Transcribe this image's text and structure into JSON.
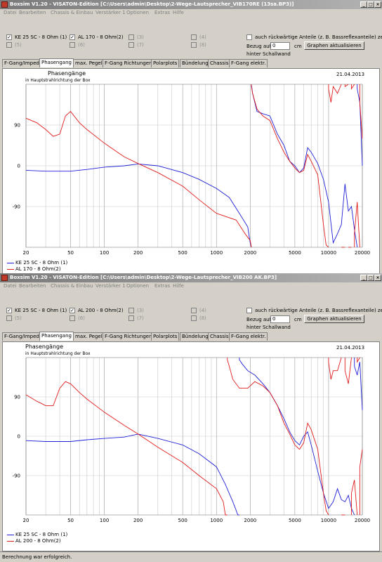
{
  "windows": [
    {
      "title": "Boxsim V1.20 - VISATON-Edition [C:\\Users\\admin\\Desktop\\2-Wege-Lautsprecher_VIB170RE (13sa.BP3)]",
      "menu": [
        "Datei",
        "Bearbeiten",
        "Chassis & Einbau",
        "Verstärker 1",
        "Optionen",
        "Extras",
        "Hilfe"
      ],
      "checks": [
        {
          "label": "KE 25 SC - 8 Ohm  (1)",
          "checked": true,
          "enabled": true
        },
        {
          "label": "AL 170 - 8 Ohm(2)",
          "checked": true,
          "enabled": true
        },
        {
          "label": "(3)",
          "checked": false,
          "enabled": false
        },
        {
          "label": "(4)",
          "checked": false,
          "enabled": false
        },
        {
          "label": "(5)",
          "checked": false,
          "enabled": false
        },
        {
          "label": "(6)",
          "checked": false,
          "enabled": false
        },
        {
          "label": "(7)",
          "checked": false,
          "enabled": false
        },
        {
          "label": "(8)",
          "checked": false,
          "enabled": false
        }
      ],
      "rueck_label": "auch rückwärtige Anteile (z. B. Bassreflexanteile) zeigen",
      "bezug_label": "Bezug auf",
      "bezug_value": "0",
      "unit_cm": "cm",
      "hinter_label": "hinter Schallwand",
      "update_button": "Graphen aktualisieren",
      "tabs": [
        "F-Gang/Imped.",
        "Phasengang",
        "max. Pegel",
        "F-Gang Richtungen",
        "Polarplots",
        "Bündelung",
        "Chassis",
        "F-Gang elektr."
      ],
      "active_tab": 1,
      "plot_title": "Phasengänge",
      "plot_subtitle": "in Hauptstrahlrichtung der Box",
      "plot_date": "21.04.2013",
      "legend": [
        {
          "label": "KE 25 SC - 8 Ohm  (1)",
          "color": "#1f1fd6"
        },
        {
          "label": "AL 170 - 8 Ohm(2)",
          "color": "#e01b1b"
        }
      ]
    },
    {
      "title": "Boxsim V1.20 - VISATON-Edition [C:\\Users\\admin\\Desktop\\2-Wege-Lautsprecher_VIB200 AK.BP3]",
      "menu": [
        "Datei",
        "Bearbeiten",
        "Chassis & Einbau",
        "Verstärker 1",
        "Optionen",
        "Extras",
        "Hilfe"
      ],
      "checks": [
        {
          "label": "KE 25 SC - 8 Ohm  (1)",
          "checked": true,
          "enabled": true
        },
        {
          "label": "AL 200 - 8 Ohm(2)",
          "checked": true,
          "enabled": true
        },
        {
          "label": "(3)",
          "checked": false,
          "enabled": false
        },
        {
          "label": "(4)",
          "checked": false,
          "enabled": false
        },
        {
          "label": "(5)",
          "checked": false,
          "enabled": false
        },
        {
          "label": "(6)",
          "checked": false,
          "enabled": false
        },
        {
          "label": "(7)",
          "checked": false,
          "enabled": false
        },
        {
          "label": "(8)",
          "checked": false,
          "enabled": false
        }
      ],
      "rueck_label": "auch rückwärtige Anteile (z. B. Bassreflexanteile) zeigen",
      "bezug_label": "Bezug auf",
      "bezug_value": "0",
      "unit_cm": "cm",
      "hinter_label": "hinter Schallwand",
      "update_button": "Graphen aktualisieren",
      "tabs": [
        "F-Gang/Imped.",
        "Phasengang",
        "max. Pegel",
        "F-Gang Richtungen",
        "Polarplots",
        "Bündelung",
        "Chassis",
        "F-Gang elektr."
      ],
      "active_tab": 1,
      "plot_title": "Phasengänge",
      "plot_subtitle": "in Hauptstrahlrichtung der Box",
      "plot_date": "21.04.2013",
      "legend": [
        {
          "label": "KE 25 SC - 8 Ohm  (1)",
          "color": "#1f1fd6"
        },
        {
          "label": "AL 200 - 8 Ohm(2)",
          "color": "#e01b1b"
        }
      ]
    }
  ],
  "status_text": "Berechnung war erfolgreich.",
  "chart_data": [
    {
      "type": "line",
      "xscale": "log",
      "xlim": [
        20,
        20000
      ],
      "ylim": [
        -180,
        180
      ],
      "xticks": [
        20,
        50,
        100,
        200,
        500,
        1000,
        2000,
        5000,
        10000,
        20000
      ],
      "xtick_labels": [
        "20",
        "50",
        "100",
        "200",
        "500",
        "1000",
        "2000",
        "5000",
        "10000",
        "20000"
      ],
      "yticks": [
        90,
        0,
        -90
      ],
      "ytick_labels": [
        "90",
        "0",
        "-90"
      ],
      "grid": true,
      "series": [
        {
          "name": "KE 25 SC - 8 Ohm  (1)",
          "color": "#1f1fd6",
          "x": [
            20,
            30,
            50,
            70,
            100,
            150,
            200,
            300,
            500,
            700,
            1000,
            1300,
            1600,
            1900,
            2000,
            2050,
            2100,
            2300,
            2600,
            3000,
            3500,
            4000,
            4500,
            5000,
            5500,
            6000,
            6500,
            7000,
            8000,
            9000,
            10000,
            11000,
            12000,
            13000,
            14000,
            15000,
            16000,
            17000,
            18000,
            19000,
            20000
          ],
          "y": [
            -10,
            -12,
            -12,
            -8,
            -3,
            0,
            4,
            0,
            -15,
            -30,
            -50,
            -70,
            -105,
            -135,
            -170,
            180,
            160,
            120,
            115,
            110,
            70,
            45,
            10,
            0,
            -15,
            -5,
            40,
            30,
            5,
            -30,
            -80,
            -170,
            -150,
            -130,
            -40,
            -100,
            -90,
            -140,
            170,
            140,
            0
          ]
        },
        {
          "name": "AL 170 - 8 Ohm(2)",
          "color": "#e01b1b",
          "x": [
            20,
            25,
            30,
            35,
            40,
            45,
            50,
            60,
            70,
            100,
            150,
            200,
            300,
            500,
            700,
            1000,
            1500,
            1800,
            2000,
            2050,
            2100,
            2300,
            2600,
            3000,
            3500,
            4000,
            4500,
            5000,
            5500,
            6000,
            6500,
            7000,
            8000,
            9000,
            9500,
            10000,
            10500,
            11000,
            12000,
            13000,
            14000,
            15000,
            16000,
            17000,
            18000,
            19000,
            20000
          ],
          "y": [
            105,
            95,
            80,
            65,
            70,
            110,
            120,
            95,
            80,
            50,
            20,
            5,
            -15,
            -45,
            -75,
            -105,
            -120,
            -150,
            -165,
            175,
            160,
            125,
            110,
            100,
            60,
            30,
            10,
            -5,
            -15,
            -10,
            25,
            10,
            -20,
            -130,
            -175,
            170,
            140,
            175,
            160,
            -180,
            175,
            -180,
            170,
            -150,
            -80,
            140,
            60
          ]
        }
      ]
    },
    {
      "type": "line",
      "xscale": "log",
      "xlim": [
        20,
        20000
      ],
      "ylim": [
        -180,
        180
      ],
      "xticks": [
        20,
        50,
        100,
        200,
        500,
        1000,
        2000,
        5000,
        10000,
        20000
      ],
      "xtick_labels": [
        "20",
        "50",
        "100",
        "200",
        "500",
        "1000",
        "2000",
        "5000",
        "10000",
        "20000"
      ],
      "yticks": [
        90,
        0,
        -90
      ],
      "ytick_labels": [
        "90",
        "0",
        "-90"
      ],
      "grid": true,
      "series": [
        {
          "name": "KE 25 SC - 8 Ohm  (1)",
          "color": "#1f1fd6",
          "x": [
            20,
            30,
            50,
            70,
            100,
            150,
            200,
            300,
            500,
            700,
            1000,
            1200,
            1400,
            1500,
            1550,
            1600,
            1700,
            1900,
            2200,
            2600,
            3000,
            3500,
            4000,
            4500,
            5000,
            5500,
            6000,
            6500,
            7000,
            8000,
            9000,
            10000,
            11000,
            12000,
            13000,
            14000,
            15000,
            16000,
            17000,
            18000,
            19000,
            20000
          ],
          "y": [
            -10,
            -12,
            -12,
            -8,
            -5,
            -2,
            5,
            -5,
            -20,
            -40,
            -70,
            -110,
            -150,
            -170,
            -180,
            175,
            165,
            150,
            140,
            120,
            100,
            70,
            40,
            10,
            -10,
            -20,
            0,
            10,
            -20,
            -80,
            -130,
            -165,
            -150,
            -120,
            -145,
            -150,
            -135,
            -165,
            160,
            140,
            170,
            60
          ]
        },
        {
          "name": "AL 200 - 8 Ohm(2)",
          "color": "#e01b1b",
          "x": [
            20,
            25,
            30,
            35,
            40,
            45,
            50,
            60,
            70,
            100,
            150,
            200,
            300,
            500,
            700,
            1000,
            1150,
            1200,
            1250,
            1300,
            1400,
            1600,
            1900,
            2200,
            2600,
            3000,
            3500,
            4000,
            4500,
            5000,
            5500,
            6000,
            6500,
            7000,
            8000,
            9000,
            9500,
            10000,
            10500,
            11000,
            12000,
            13000,
            14000,
            15000,
            16000,
            17000,
            18000,
            19000,
            20000
          ],
          "y": [
            95,
            80,
            70,
            70,
            110,
            125,
            120,
            100,
            85,
            55,
            25,
            5,
            -25,
            -60,
            -90,
            -120,
            -150,
            -180,
            175,
            160,
            130,
            110,
            110,
            125,
            115,
            100,
            70,
            30,
            5,
            -20,
            -30,
            -15,
            30,
            15,
            -30,
            -130,
            -170,
            170,
            130,
            150,
            150,
            -180,
            150,
            120,
            -130,
            -100,
            170,
            -70,
            -30
          ]
        }
      ]
    }
  ]
}
